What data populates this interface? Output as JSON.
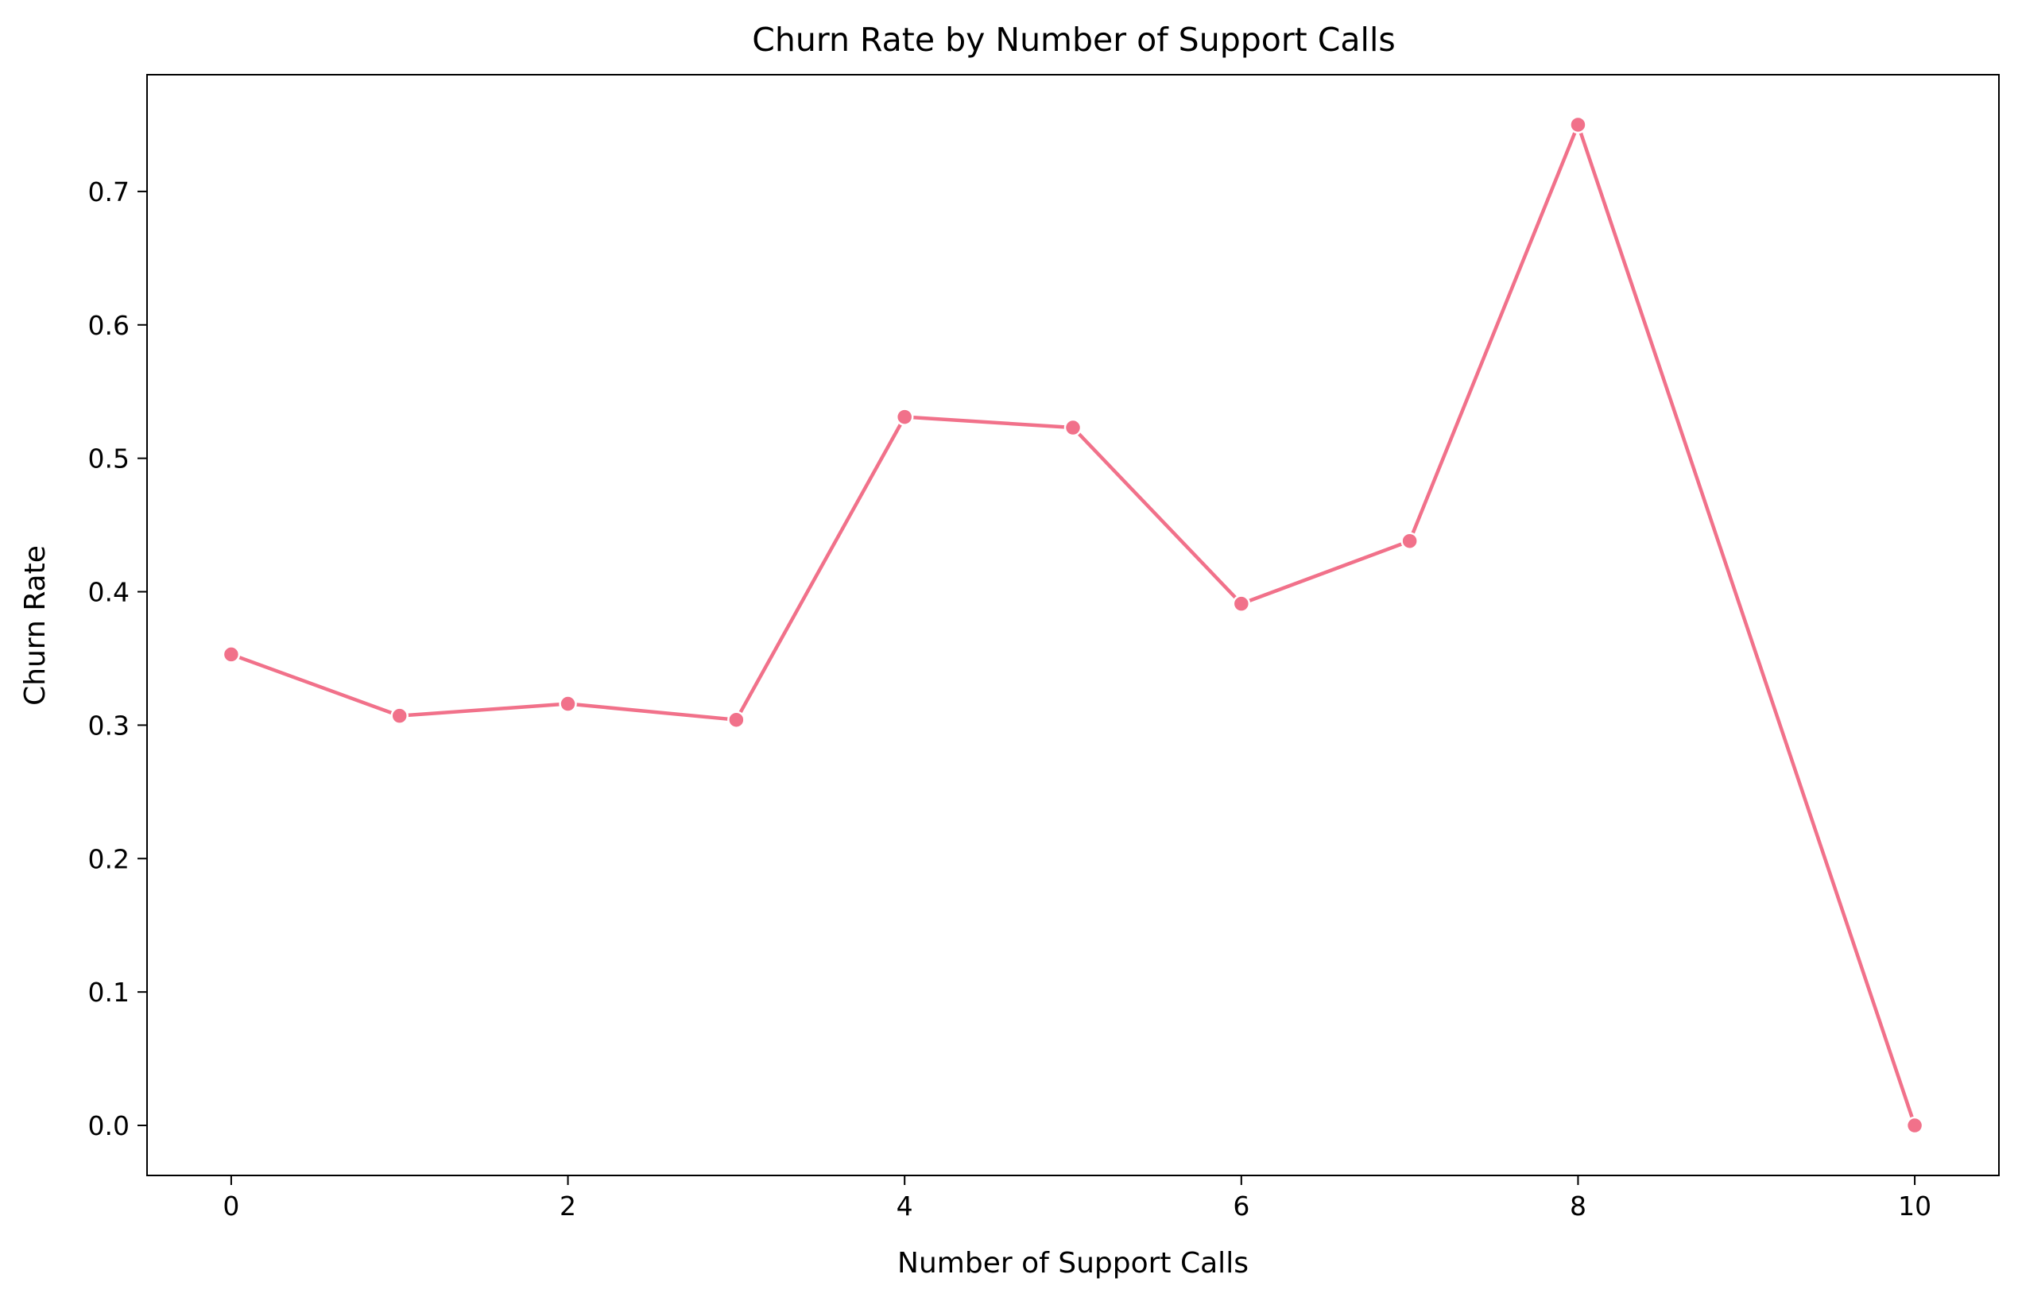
{
  "chart_data": {
    "type": "line",
    "title": "Churn Rate by Number of Support Calls",
    "xlabel": "Number of Support Calls",
    "ylabel": "Churn Rate",
    "xlim": [
      -0.5,
      10.5
    ],
    "ylim": [
      -0.0375,
      0.7875
    ],
    "x_ticks": [
      0,
      2,
      4,
      6,
      8,
      10
    ],
    "x_tick_labels": [
      "0",
      "2",
      "4",
      "6",
      "8",
      "10"
    ],
    "y_ticks": [
      0.0,
      0.1,
      0.2,
      0.3,
      0.4,
      0.5,
      0.6,
      0.7
    ],
    "y_tick_labels": [
      "0.0",
      "0.1",
      "0.2",
      "0.3",
      "0.4",
      "0.5",
      "0.6",
      "0.7"
    ],
    "grid": false,
    "legend": "none",
    "series": [
      {
        "color": "#f1718a",
        "marker": "circle",
        "x": [
          0,
          1,
          2,
          3,
          4,
          5,
          6,
          7,
          8,
          10
        ],
        "y": [
          0.353,
          0.307,
          0.316,
          0.304,
          0.531,
          0.523,
          0.391,
          0.438,
          0.75,
          0.0
        ]
      }
    ]
  }
}
